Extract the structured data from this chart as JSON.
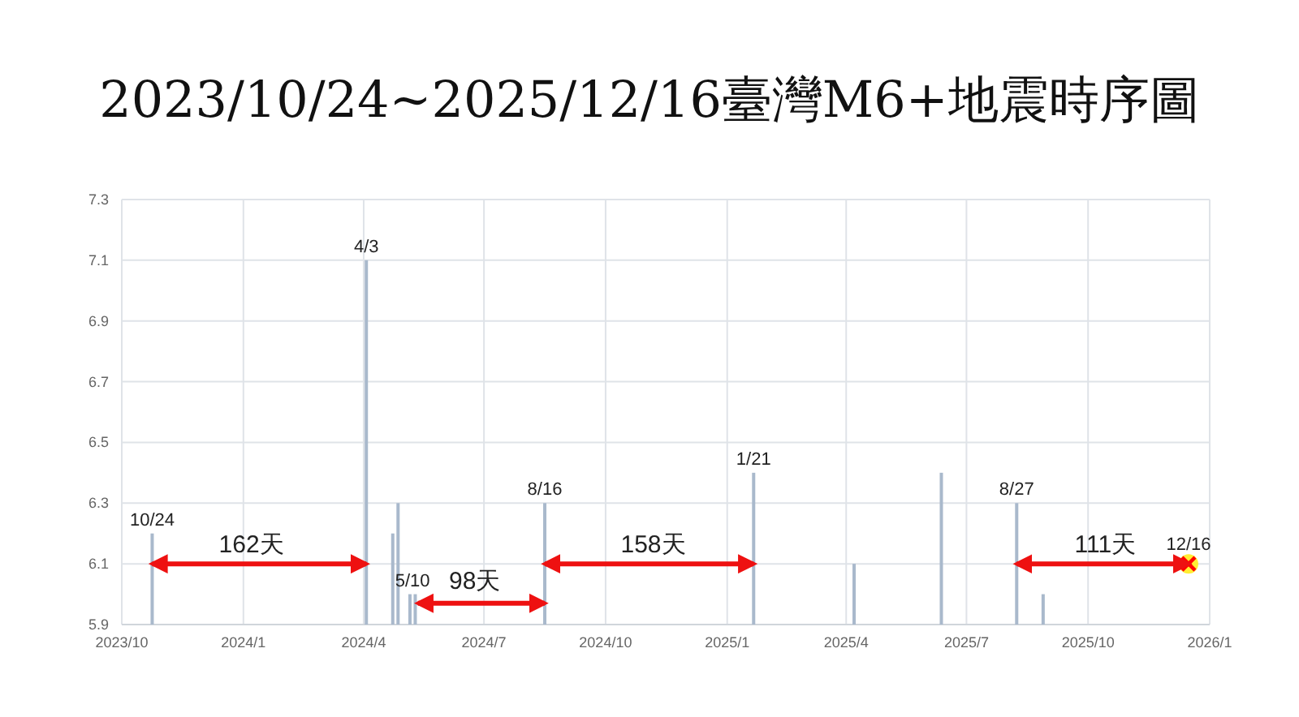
{
  "chart_data": {
    "type": "bar",
    "title": "2023/10/24~2025/12/16臺灣M6+地震時序圖",
    "xlim": [
      "2023-10-01",
      "2026-01-01"
    ],
    "xticks": [
      {
        "value": "2023-10-01",
        "label": "2023/10"
      },
      {
        "value": "2024-01-01",
        "label": "2024/1"
      },
      {
        "value": "2024-04-01",
        "label": "2024/4"
      },
      {
        "value": "2024-07-01",
        "label": "2024/7"
      },
      {
        "value": "2024-10-01",
        "label": "2024/10"
      },
      {
        "value": "2025-01-01",
        "label": "2025/1"
      },
      {
        "value": "2025-04-01",
        "label": "2025/4"
      },
      {
        "value": "2025-07-01",
        "label": "2025/7"
      },
      {
        "value": "2025-10-01",
        "label": "2025/10"
      },
      {
        "value": "2026-01-01",
        "label": "2026/1"
      }
    ],
    "ylim": [
      5.9,
      7.3
    ],
    "yticks": [
      5.9,
      6.1,
      6.3,
      6.5,
      6.7,
      6.9,
      7.1,
      7.3
    ],
    "grid": true,
    "series": [
      {
        "color": "#a9b9cc",
        "x": [
          "2023-10-24",
          "2024-04-03",
          "2024-04-23",
          "2024-04-27",
          "2024-05-06",
          "2024-05-10",
          "2024-08-16",
          "2025-01-21",
          "2025-04-07",
          "2025-06-12",
          "2025-08-08",
          "2025-08-28"
        ],
        "values": [
          6.2,
          7.1,
          6.2,
          6.3,
          6.0,
          6.0,
          6.3,
          6.4,
          6.1,
          6.4,
          6.3,
          6.0
        ]
      },
      {
        "type": "scatter",
        "color": "#ff0000",
        "marker": "cross",
        "x": [
          "2025-12-16"
        ],
        "values": [
          6.1
        ]
      },
      {
        "type": "line",
        "color": "#ee1111",
        "line_style": "solid",
        "x": [
          "2023-10-24",
          "2024-04-03"
        ],
        "values": [
          6.1,
          6.1
        ]
      },
      {
        "type": "line",
        "color": "#ee1111",
        "line_style": "solid",
        "x": [
          "2024-05-12",
          "2024-08-16"
        ],
        "values": [
          5.97,
          5.97
        ]
      },
      {
        "type": "line",
        "color": "#ee1111",
        "line_style": "solid",
        "x": [
          "2024-08-16",
          "2025-01-21"
        ],
        "values": [
          6.1,
          6.1
        ]
      },
      {
        "type": "line",
        "color": "#ee1111",
        "line_style": "solid",
        "x": [
          "2025-08-08",
          "2025-12-16"
        ],
        "values": [
          6.1,
          6.1
        ]
      }
    ],
    "annotations": [
      {
        "text": "10/24",
        "x": "2023-10-24",
        "y": 6.2
      },
      {
        "text": "4/3",
        "x": "2024-04-03",
        "y": 7.1
      },
      {
        "text": "5/10",
        "x": "2024-05-08",
        "y": 6.0
      },
      {
        "text": "8/16",
        "x": "2024-08-16",
        "y": 6.3
      },
      {
        "text": "1/21",
        "x": "2025-01-21",
        "y": 6.4
      },
      {
        "text": "8/27",
        "x": "2025-08-08",
        "y": 6.3
      },
      {
        "text": "12/16",
        "x": "2025-12-16",
        "y": 6.12
      },
      {
        "text": "162天",
        "x": "2024-01-07",
        "y": 6.11
      },
      {
        "text": "98天",
        "x": "2024-06-24",
        "y": 5.99
      },
      {
        "text": "158天",
        "x": "2024-11-06",
        "y": 6.11
      },
      {
        "text": "111天",
        "x": "2025-10-14",
        "y": 6.11
      }
    ]
  }
}
